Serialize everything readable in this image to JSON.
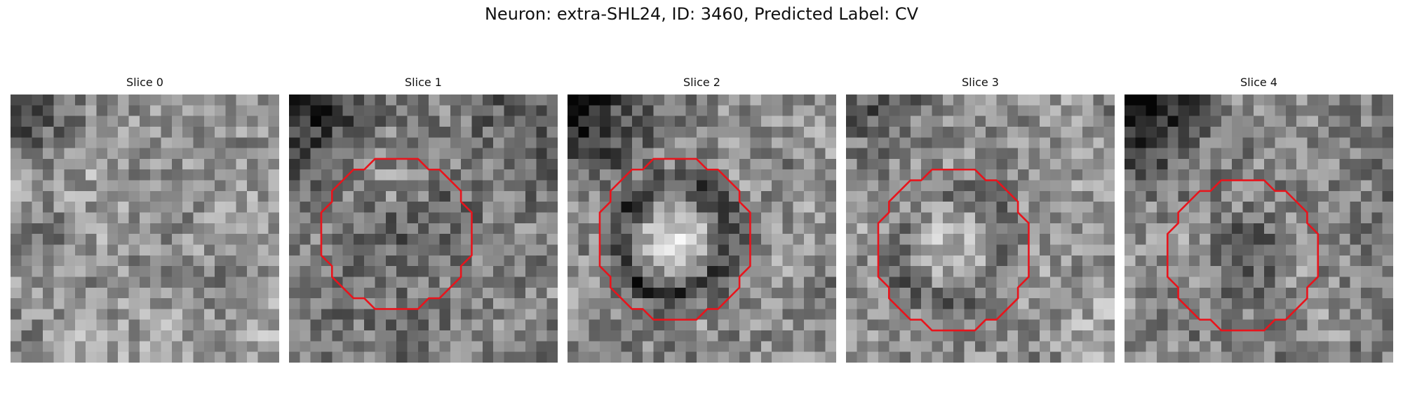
{
  "figure": {
    "title": "Neuron: extra-SHL24, ID: 3460, Predicted Label: CV"
  },
  "panels": [
    {
      "title": "Slice 0",
      "contour": []
    },
    {
      "title": "Slice 1",
      "contour": [
        [
          8,
          6
        ],
        [
          12,
          6
        ],
        [
          13,
          7
        ],
        [
          14,
          7
        ],
        [
          16,
          9
        ],
        [
          16,
          10
        ],
        [
          17,
          11
        ],
        [
          17,
          15
        ],
        [
          16,
          16
        ],
        [
          16,
          17
        ],
        [
          14,
          19
        ],
        [
          13,
          19
        ],
        [
          12,
          20
        ],
        [
          8,
          20
        ],
        [
          7,
          19
        ],
        [
          6,
          19
        ],
        [
          4,
          17
        ],
        [
          4,
          16
        ],
        [
          3,
          15
        ],
        [
          3,
          11
        ],
        [
          4,
          10
        ],
        [
          4,
          9
        ],
        [
          6,
          7
        ],
        [
          7,
          7
        ]
      ]
    },
    {
      "title": "Slice 2",
      "contour": [
        [
          8,
          6
        ],
        [
          12,
          6
        ],
        [
          13,
          7
        ],
        [
          14,
          7
        ],
        [
          16,
          9
        ],
        [
          16,
          10
        ],
        [
          17,
          11
        ],
        [
          17,
          16
        ],
        [
          16,
          17
        ],
        [
          16,
          18
        ],
        [
          14,
          20
        ],
        [
          13,
          20
        ],
        [
          12,
          21
        ],
        [
          8,
          21
        ],
        [
          7,
          20
        ],
        [
          6,
          20
        ],
        [
          4,
          18
        ],
        [
          4,
          17
        ],
        [
          3,
          16
        ],
        [
          3,
          11
        ],
        [
          4,
          10
        ],
        [
          4,
          9
        ],
        [
          6,
          7
        ],
        [
          7,
          7
        ]
      ]
    },
    {
      "title": "Slice 3",
      "contour": [
        [
          8,
          7
        ],
        [
          12,
          7
        ],
        [
          13,
          8
        ],
        [
          14,
          8
        ],
        [
          16,
          10
        ],
        [
          16,
          11
        ],
        [
          17,
          12
        ],
        [
          17,
          17
        ],
        [
          16,
          18
        ],
        [
          16,
          19
        ],
        [
          14,
          21
        ],
        [
          13,
          21
        ],
        [
          12,
          22
        ],
        [
          8,
          22
        ],
        [
          7,
          21
        ],
        [
          6,
          21
        ],
        [
          4,
          19
        ],
        [
          4,
          18
        ],
        [
          3,
          17
        ],
        [
          3,
          12
        ],
        [
          4,
          11
        ],
        [
          4,
          10
        ],
        [
          6,
          8
        ],
        [
          7,
          8
        ]
      ]
    },
    {
      "title": "Slice 4",
      "contour": [
        [
          9,
          8
        ],
        [
          13,
          8
        ],
        [
          14,
          9
        ],
        [
          15,
          9
        ],
        [
          17,
          11
        ],
        [
          17,
          12
        ],
        [
          18,
          13
        ],
        [
          18,
          17
        ],
        [
          17,
          18
        ],
        [
          17,
          19
        ],
        [
          15,
          21
        ],
        [
          14,
          21
        ],
        [
          13,
          22
        ],
        [
          9,
          22
        ],
        [
          8,
          21
        ],
        [
          7,
          21
        ],
        [
          5,
          19
        ],
        [
          5,
          18
        ],
        [
          4,
          17
        ],
        [
          4,
          13
        ],
        [
          5,
          12
        ],
        [
          5,
          11
        ],
        [
          7,
          9
        ],
        [
          8,
          9
        ]
      ]
    }
  ],
  "style": {
    "contour_color": "#e8141c"
  }
}
